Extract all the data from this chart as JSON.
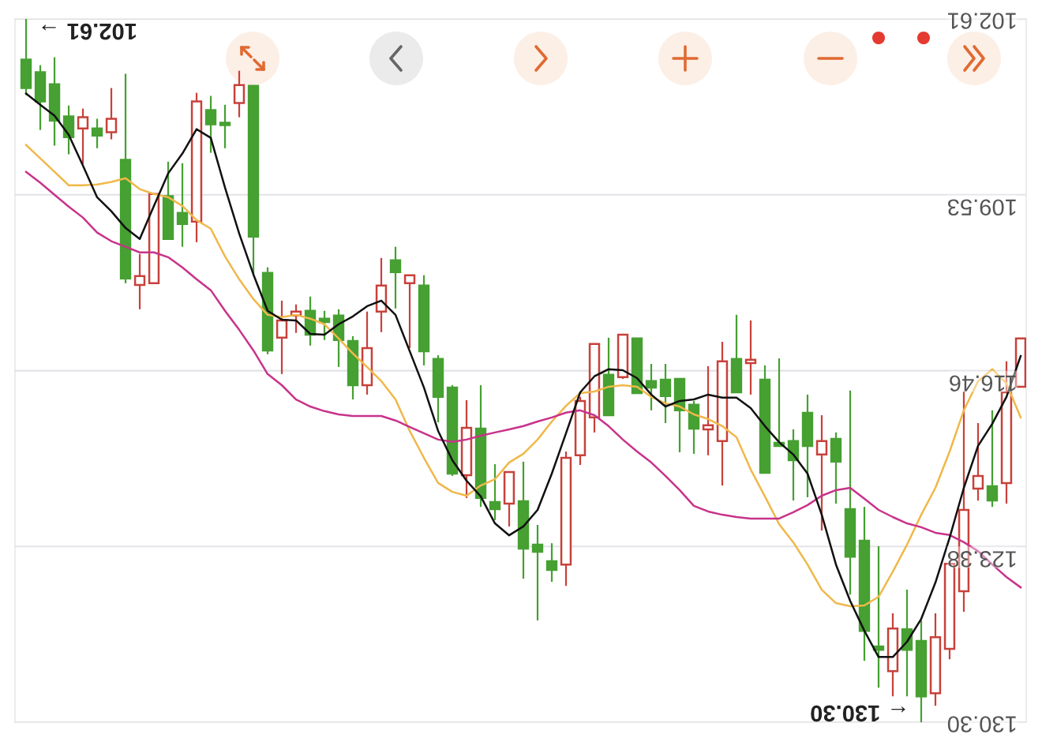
{
  "chart_data": {
    "type": "candlestick",
    "categories": [
      null,
      null,
      null,
      null,
      null,
      null,
      null,
      null,
      null,
      null,
      null,
      null,
      null,
      null,
      null,
      null,
      null,
      null,
      null,
      null,
      null,
      null,
      null,
      null,
      null,
      null,
      null,
      null,
      null,
      null,
      null,
      null,
      null,
      null,
      null,
      null,
      null,
      null,
      null,
      null,
      null,
      null,
      null,
      null,
      null,
      null,
      null,
      null,
      null,
      null,
      null,
      null,
      null,
      null,
      null,
      null,
      null,
      null,
      null,
      null,
      null,
      null,
      null,
      null,
      null,
      null,
      null,
      null,
      null,
      null,
      null
    ],
    "ohlc": [
      [
        105.33,
        105.61,
        102.61,
        104.21
      ],
      [
        105.86,
        106.98,
        104.43,
        104.71
      ],
      [
        106.61,
        107.6,
        104.12,
        105.18
      ],
      [
        107.26,
        107.94,
        106.02,
        106.45
      ],
      [
        106.48,
        108.32,
        106.14,
        106.92
      ],
      [
        107.2,
        107.7,
        106.54,
        106.92
      ],
      [
        106.54,
        107.35,
        105.33,
        107.07
      ],
      [
        112.83,
        113.01,
        104.77,
        108.16
      ],
      [
        112.73,
        114.04,
        111.86,
        113.08
      ],
      [
        109.5,
        113.01,
        109.5,
        113.01
      ],
      [
        111.27,
        111.27,
        108.23,
        109.59
      ],
      [
        110.68,
        111.58,
        108.29,
        110.25
      ],
      [
        105.86,
        111.4,
        105.52,
        110.59
      ],
      [
        106.76,
        107.88,
        105.64,
        106.2
      ],
      [
        106.79,
        107.7,
        105.99,
        106.7
      ],
      [
        105.21,
        106.48,
        104.65,
        105.92
      ],
      [
        111.18,
        112.67,
        105.24,
        105.24
      ],
      [
        115.66,
        115.81,
        112.39,
        112.61
      ],
      [
        114.48,
        116.59,
        113.7,
        115.16
      ],
      [
        114.13,
        114.97,
        113.85,
        114.29
      ],
      [
        115.04,
        115.47,
        113.54,
        114.1
      ],
      [
        114.54,
        115.25,
        114.1,
        114.41
      ],
      [
        115.25,
        116.31,
        114.04,
        114.29
      ],
      [
        117.03,
        117.59,
        115.1,
        115.29
      ],
      [
        115.57,
        117.4,
        114.13,
        117.03
      ],
      [
        113.11,
        114.94,
        112.02,
        114.13
      ],
      [
        112.58,
        114.01,
        111.58,
        112.11
      ],
      [
        112.7,
        115.57,
        112.7,
        113.01
      ],
      [
        115.69,
        116.25,
        112.7,
        113.11
      ],
      [
        117.49,
        118.49,
        115.85,
        116.0
      ],
      [
        120.51,
        120.6,
        117.03,
        117.12
      ],
      [
        118.71,
        121.47,
        117.62,
        120.57
      ],
      [
        121.47,
        121.82,
        117.03,
        118.74
      ],
      [
        121.91,
        122.34,
        120.14,
        121.63
      ],
      [
        120.45,
        122.59,
        120.45,
        121.69
      ],
      [
        123.46,
        124.65,
        120.04,
        121.6
      ],
      [
        123.59,
        126.29,
        122.53,
        123.31
      ],
      [
        124.3,
        124.77,
        123.25,
        123.96
      ],
      [
        119.89,
        124.93,
        119.64,
        124.09
      ],
      [
        117.65,
        120.17,
        117.49,
        119.79
      ],
      [
        115.41,
        118.89,
        115.38,
        118.3
      ],
      [
        118.21,
        118.21,
        115.16,
        116.62
      ],
      [
        115.04,
        116.78,
        115.01,
        116.71
      ],
      [
        117.34,
        117.34,
        115.16,
        115.19
      ],
      [
        117.12,
        118.02,
        116.19,
        116.87
      ],
      [
        117.46,
        118.52,
        116.19,
        116.81
      ],
      [
        118.02,
        119.67,
        116.78,
        116.78
      ],
      [
        118.74,
        119.73,
        117.65,
        117.8
      ],
      [
        118.61,
        119.79,
        116.28,
        118.77
      ],
      [
        116.09,
        120.98,
        115.32,
        119.23
      ],
      [
        117.31,
        117.31,
        114.26,
        116.0
      ],
      [
        116.03,
        117.4,
        114.48,
        116.16
      ],
      [
        120.48,
        120.48,
        116.25,
        116.81
      ],
      [
        119.42,
        119.45,
        115.97,
        119.3
      ],
      [
        119.98,
        121.57,
        118.77,
        119.23
      ],
      [
        119.42,
        121.44,
        117.4,
        118.12
      ],
      [
        119.23,
        122.75,
        118.21,
        119.76
      ],
      [
        120.04,
        121.69,
        118.89,
        119.14
      ],
      [
        123.78,
        125.27,
        117.24,
        121.91
      ],
      [
        126.7,
        127.88,
        121.82,
        123.15
      ],
      [
        127.45,
        128.94,
        123.37,
        127.32
      ],
      [
        126.61,
        129.28,
        126.01,
        128.29
      ],
      [
        127.45,
        129.28,
        125.08,
        126.64
      ],
      [
        129.28,
        130.3,
        126.29,
        127.1
      ],
      [
        126.95,
        129.65,
        126.01,
        129.16
      ],
      [
        124.06,
        127.82,
        124.06,
        127.41
      ],
      [
        121.94,
        125.95,
        117.28,
        125.14
      ],
      [
        120.6,
        121.57,
        118.52,
        121.1
      ],
      [
        121.57,
        121.82,
        118.02,
        121.01
      ],
      [
        117.31,
        121.69,
        116.09,
        120.88
      ],
      [
        115.19,
        117.09,
        115.19,
        117.09
      ]
    ],
    "colors": [
      "#46a032",
      "#46a032",
      "#46a032",
      "#46a032",
      "#c8413b",
      "#46a032",
      "#c8413b",
      "#46a032",
      "#c8413b",
      "#c8413b",
      "#46a032",
      "#46a032",
      "#c8413b",
      "#46a032",
      "#46a032",
      "#c8413b",
      "#46a032",
      "#46a032",
      "#c8413b",
      "#c8413b",
      "#46a032",
      "#46a032",
      "#46a032",
      "#46a032",
      "#c8413b",
      "#c8413b",
      "#46a032",
      "#c8413b",
      "#46a032",
      "#46a032",
      "#46a032",
      "#c8413b",
      "#46a032",
      "#46a032",
      "#c8413b",
      "#46a032",
      "#46a032",
      "#46a032",
      "#c8413b",
      "#c8413b",
      "#c8413b",
      "#46a032",
      "#c8413b",
      "#46a032",
      "#46a032",
      "#46a032",
      "#46a032",
      "#46a032",
      "#c8413b",
      "#c8413b",
      "#46a032",
      "#c8413b",
      "#46a032",
      "#46a032",
      "#46a032",
      "#46a032",
      "#c8413b",
      "#46a032",
      "#46a032",
      "#46a032",
      "#46a032",
      "#c8413b",
      "#46a032",
      "#46a032",
      "#c8413b",
      "#c8413b",
      "#c8413b",
      "#c8413b",
      "#46a032",
      "#c8413b",
      "#c8413b"
    ],
    "series": [
      {
        "type": "line",
        "color": "#f0b84a",
        "values": [
          107.57,
          108.1,
          108.63,
          109.16,
          109.16,
          109.13,
          109.03,
          108.88,
          109.31,
          109.5,
          109.63,
          109.97,
          110.53,
          110.87,
          111.96,
          112.86,
          113.64,
          114.26,
          114.35,
          114.26,
          114.41,
          114.63,
          115.19,
          115.78,
          116.31,
          116.87,
          117.59,
          118.83,
          119.89,
          120.88,
          121.23,
          121.38,
          120.98,
          120.73,
          120.07,
          119.73,
          119.17,
          118.46,
          117.84,
          117.34,
          117.28,
          117.09,
          117.03,
          117.09,
          117.49,
          117.74,
          117.87,
          118.18,
          118.36,
          118.64,
          119.08,
          120.35,
          121.41,
          122.5,
          123.22,
          124.09,
          125.08,
          125.61,
          125.73,
          125.7,
          125.36,
          124.37,
          123.31,
          122.13,
          121.07,
          119.64,
          118.02,
          116.87,
          116.4,
          116.96,
          118.3
        ]
      },
      {
        "type": "line",
        "color": "#c8338a",
        "values": [
          108.63,
          109.06,
          109.53,
          110.0,
          110.43,
          111.02,
          111.36,
          111.58,
          111.8,
          111.8,
          111.99,
          112.39,
          112.86,
          113.29,
          114.1,
          114.85,
          115.66,
          116.59,
          117.03,
          117.59,
          117.87,
          118.05,
          118.18,
          118.24,
          118.24,
          118.24,
          118.42,
          118.67,
          118.92,
          119.17,
          119.26,
          119.17,
          119.02,
          118.89,
          118.77,
          118.64,
          118.46,
          118.3,
          118.11,
          118.02,
          118.21,
          118.64,
          119.17,
          119.64,
          120.07,
          120.6,
          121.16,
          121.78,
          122.0,
          122.13,
          122.22,
          122.28,
          122.28,
          122.28,
          122.03,
          121.75,
          121.38,
          121.16,
          121.07,
          121.5,
          121.94,
          122.22,
          122.47,
          122.62,
          122.84,
          122.93,
          123.21,
          123.56,
          124.09,
          124.58,
          124.99
        ]
      },
      {
        "type": "line",
        "color": "#111111",
        "values": [
          105.55,
          105.99,
          106.42,
          107.17,
          108.38,
          109.63,
          110.18,
          110.84,
          111.27,
          109.97,
          108.69,
          107.91,
          106.95,
          107.29,
          109.25,
          111.06,
          112.67,
          114.1,
          114.45,
          114.48,
          115.01,
          115.04,
          114.63,
          114.32,
          113.92,
          113.7,
          114.26,
          115.69,
          117.12,
          118.83,
          119.98,
          120.79,
          121.41,
          122.47,
          122.94,
          122.59,
          121.94,
          120.51,
          118.92,
          117.31,
          116.68,
          116.4,
          116.44,
          116.75,
          117.4,
          117.87,
          117.65,
          117.59,
          117.4,
          117.52,
          117.52,
          117.93,
          118.64,
          119.27,
          119.76,
          120.51,
          122.13,
          124.09,
          125.52,
          126.7,
          127.73,
          127.73,
          127.13,
          126.23,
          124.8,
          123.03,
          121.07,
          119.42,
          118.55,
          117.49,
          115.88
        ]
      }
    ],
    "ylim": [
      130.3,
      102.61
    ],
    "yticks": [
      102.61,
      109.53,
      116.46,
      123.38,
      {
        "value": 130.3,
        "label": "130.30"
      }
    ],
    "grid": "y",
    "annotations": [
      "102.61 →",
      "← 130.30"
    ]
  }
}
